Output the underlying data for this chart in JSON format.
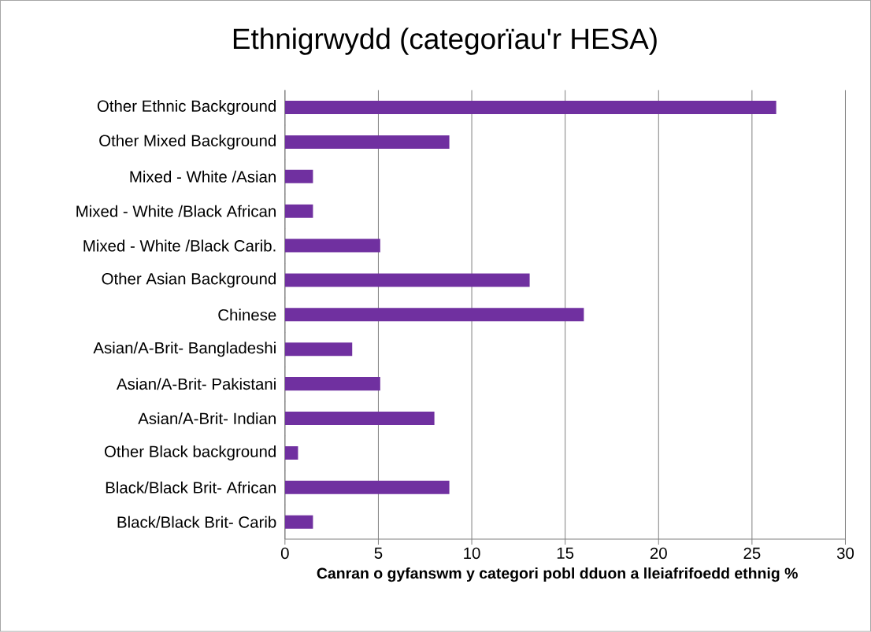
{
  "chart_data": {
    "type": "bar",
    "orientation": "horizontal",
    "title": "Ethnigrwydd (categorïau'r HESA)",
    "xlabel": "Canran o gyfanswm y categori pobl dduon a lleiafrifoedd ethnig %",
    "categories": [
      "Other Ethnic Background",
      "Other Mixed Background",
      "Mixed - White /Asian",
      "Mixed - White /Black African",
      "Mixed - White /Black Carib.",
      "Other Asian Background",
      "Chinese",
      "Asian/A-Brit- Bangladeshi",
      "Asian/A-Brit- Pakistani",
      "Asian/A-Brit- Indian",
      "Other Black background",
      "Black/Black Brit- African",
      "Black/Black Brit- Carib"
    ],
    "values": [
      26.3,
      8.8,
      1.5,
      1.5,
      5.1,
      13.1,
      16.0,
      3.6,
      5.1,
      8.0,
      0.7,
      8.8,
      1.5
    ],
    "color": "#7030a0",
    "xlim": [
      0,
      30
    ],
    "xticks": [
      0,
      5,
      10,
      15,
      20,
      25,
      30
    ],
    "grid": "x"
  }
}
